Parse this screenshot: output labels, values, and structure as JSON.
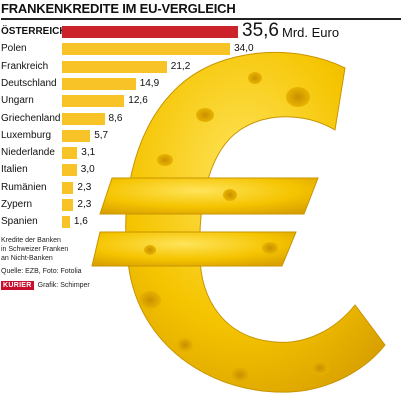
{
  "colors": {
    "highlight": "#cc2229",
    "bar": "#f7c326",
    "cheese": "#f5c400"
  },
  "chart_data": {
    "type": "bar",
    "orientation": "horizontal",
    "title": "FRANKENKREDITE IM EU-VERGLEICH",
    "unit": "Mrd. Euro",
    "categories": [
      "ÖSTERREICH",
      "Polen",
      "Frankreich",
      "Deutschland",
      "Ungarn",
      "Griechenland",
      "Luxemburg",
      "Niederlande",
      "Italien",
      "Rumänien",
      "Zypern",
      "Spanien"
    ],
    "values": [
      35.6,
      34.0,
      21.2,
      14.9,
      12.6,
      8.6,
      5.7,
      3.1,
      3.0,
      2.3,
      2.3,
      1.6
    ],
    "value_labels": [
      "35,6",
      "34,0",
      "21,2",
      "14,9",
      "12,6",
      "8,6",
      "5,7",
      "3,1",
      "3,0",
      "2,3",
      "2,3",
      "1,6"
    ],
    "xlim": [
      0,
      35.6
    ],
    "grid": false,
    "legend": "none"
  },
  "note_lines": [
    "Kredite der Banken",
    "in Schweizer Franken",
    "an Nicht-Banken"
  ],
  "source": "Quelle: EZB, Foto: Fotolia",
  "logo_text": "KURIER",
  "credit": "Grafik: Schimper"
}
